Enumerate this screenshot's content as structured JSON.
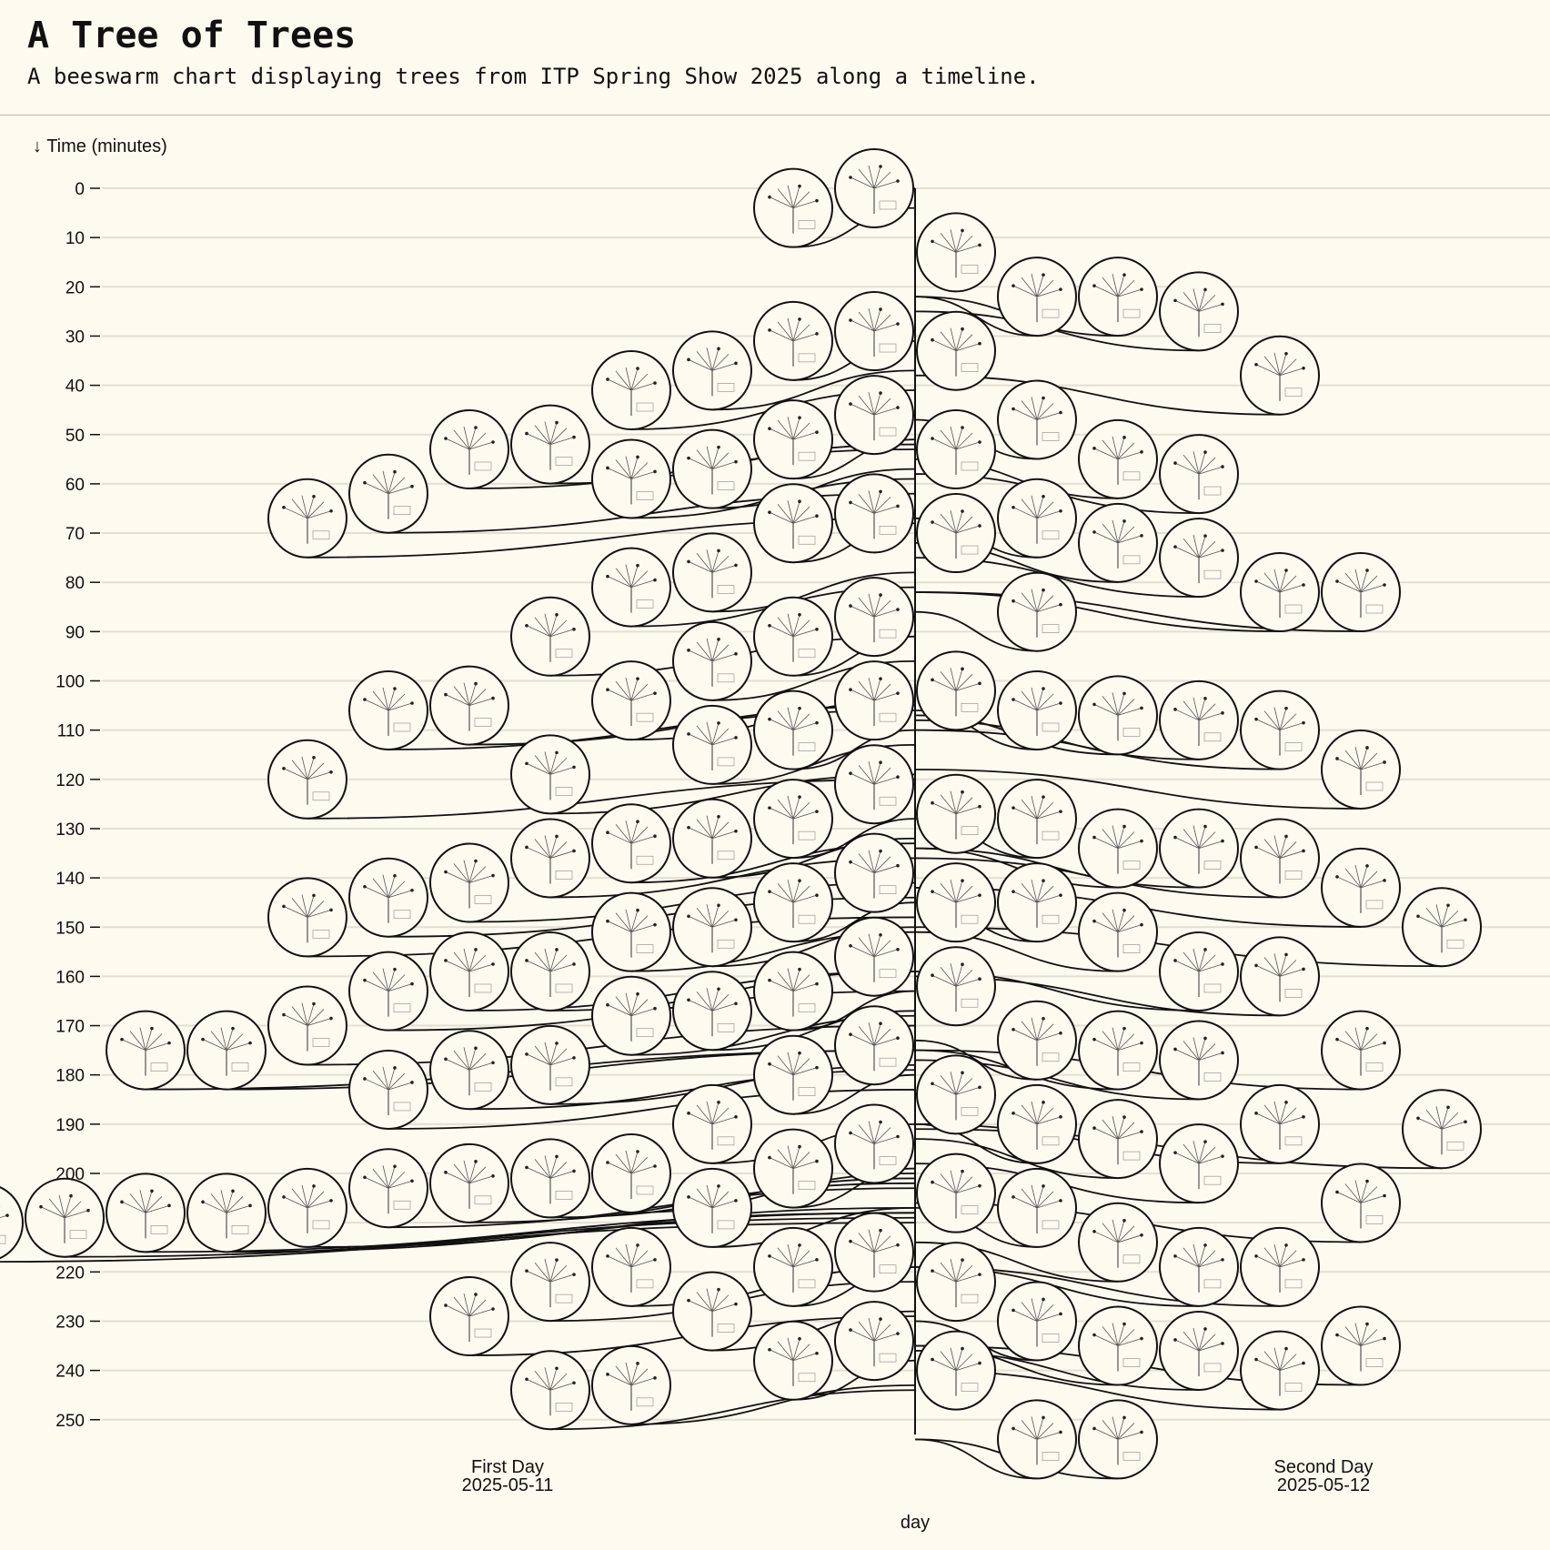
{
  "header": {
    "title": "A Tree of Trees",
    "subtitle": "A beeswarm chart displaying trees from ITP Spring Show 2025 along a timeline."
  },
  "chart_data": {
    "type": "scatter",
    "variant": "beeswarm",
    "title": "A Tree of Trees",
    "subtitle": "A beeswarm chart displaying trees from ITP Spring Show 2025 along a timeline.",
    "xlabel": "day",
    "ylabel": "↓ Time (minutes)",
    "y_axis_reversed": true,
    "ylim": [
      0,
      250
    ],
    "y_ticks": [
      0,
      10,
      20,
      30,
      40,
      50,
      60,
      70,
      80,
      90,
      100,
      110,
      120,
      130,
      140,
      150,
      160,
      170,
      180,
      190,
      200,
      210,
      220,
      230,
      240,
      250
    ],
    "categories": [
      {
        "label": "First Day",
        "date": "2025-05-11"
      },
      {
        "label": "Second Day",
        "date": "2025-05-12"
      }
    ],
    "grid": true,
    "mark": "circular tree drawing",
    "series": [
      {
        "category": "2025-05-11",
        "times": [
          0,
          4,
          29,
          31,
          37,
          41,
          46,
          51,
          52,
          53,
          57,
          59,
          62,
          66,
          67,
          68,
          78,
          81,
          87,
          91,
          91,
          96,
          104,
          104,
          105,
          106,
          110,
          113,
          119,
          120,
          121,
          128,
          132,
          133,
          136,
          139,
          141,
          144,
          145,
          148,
          150,
          151,
          156,
          159,
          159,
          163,
          163,
          167,
          168,
          170,
          174,
          175,
          175,
          178,
          179,
          180,
          183,
          190,
          194,
          199,
          200,
          201,
          202,
          203,
          207,
          207,
          208,
          208,
          209,
          210,
          216,
          219,
          219,
          222,
          228,
          229,
          234,
          238,
          243,
          244
        ]
      },
      {
        "category": "2025-05-12",
        "times": [
          13,
          22,
          22,
          25,
          33,
          38,
          47,
          53,
          55,
          58,
          67,
          70,
          72,
          75,
          82,
          82,
          86,
          102,
          106,
          107,
          108,
          110,
          118,
          127,
          128,
          134,
          134,
          136,
          142,
          145,
          145,
          150,
          151,
          159,
          160,
          162,
          173,
          175,
          175,
          177,
          184,
          190,
          190,
          191,
          193,
          198,
          204,
          206,
          207,
          214,
          219,
          219,
          222,
          230,
          235,
          235,
          236,
          240,
          240,
          254,
          254
        ]
      }
    ]
  }
}
